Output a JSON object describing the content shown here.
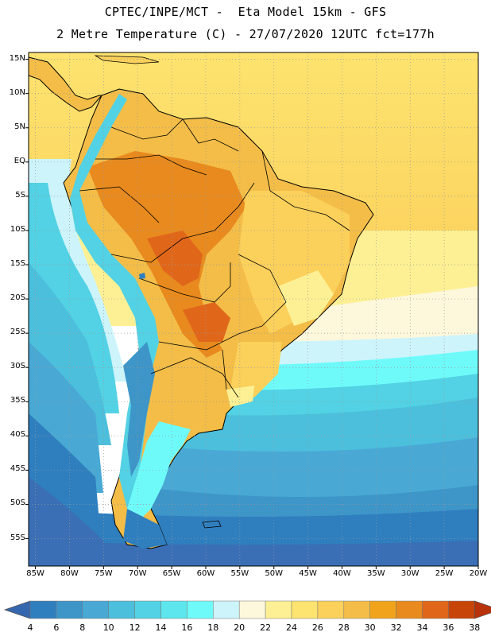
{
  "title": {
    "line1": "CPTEC/INPE/MCT -  Eta Model 15km - GFS",
    "line2": "2 Metre Temperature (C) - 27/07/2020 12UTC fct=177h"
  },
  "map": {
    "lon_range": [
      -86,
      -20
    ],
    "lat_range": [
      -59,
      16
    ],
    "lat_labels": [
      "15N",
      "10N",
      "5N",
      "EQ",
      "5S",
      "10S",
      "15S",
      "20S",
      "25S",
      "30S",
      "35S",
      "40S",
      "45S",
      "50S",
      "55S"
    ],
    "lat_values": [
      15,
      10,
      5,
      0,
      -5,
      -10,
      -15,
      -20,
      -25,
      -30,
      -35,
      -40,
      -45,
      -50,
      -55
    ],
    "lon_labels": [
      "85W",
      "80W",
      "75W",
      "70W",
      "65W",
      "60W",
      "55W",
      "50W",
      "45W",
      "40W",
      "35W",
      "30W",
      "25W",
      "20W"
    ],
    "lon_values": [
      -85,
      -80,
      -75,
      -70,
      -65,
      -60,
      -55,
      -50,
      -45,
      -40,
      -35,
      -30,
      -25,
      -20
    ]
  },
  "colorbar": {
    "labels": [
      "4",
      "6",
      "8",
      "10",
      "12",
      "14",
      "16",
      "18",
      "20",
      "22",
      "24",
      "26",
      "28",
      "30",
      "32",
      "34",
      "36",
      "38"
    ],
    "colors": [
      "#3a6fb5",
      "#2f7fbf",
      "#3d95c8",
      "#49a9d4",
      "#4cbfdc",
      "#52d2e4",
      "#5ee6ee",
      "#6ffafa",
      "#cdf4fb",
      "#fdf7dc",
      "#fdf094",
      "#fde36f",
      "#fbd05b",
      "#f3bd48",
      "#f1a41b",
      "#e88a1e",
      "#e0671a",
      "#c8450a",
      "#b8330b"
    ],
    "lower_arrow_color": "#3467ad",
    "upper_arrow_color": "#b8330b"
  }
}
